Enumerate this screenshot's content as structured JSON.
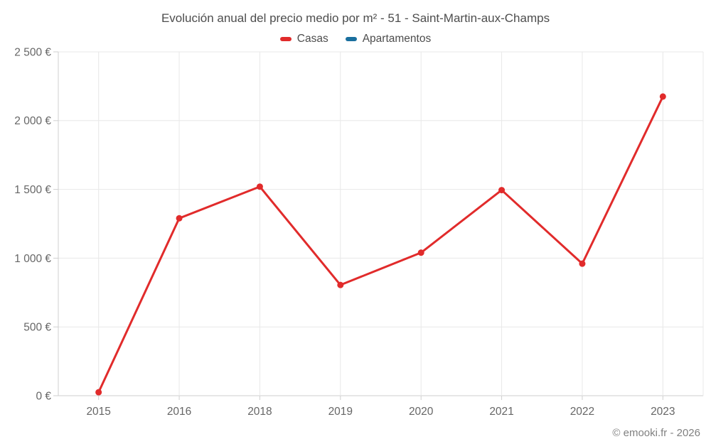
{
  "title": "Evolución anual del precio medio por m² - 51 - Saint-Martin-aux-Champs",
  "footer": "© emooki.fr - 2026",
  "colors": {
    "casas": "#e12b2b",
    "apartamentos": "#1a6f9e",
    "grid": "#e8e8e8",
    "axis": "#cfcfcf",
    "title_text": "#4d4d4d",
    "axis_text": "#666666",
    "footer_text": "#808080"
  },
  "chart_data": {
    "type": "line",
    "title": "Evolución anual del precio medio por m² - 51 - Saint-Martin-aux-Champs",
    "categories": [
      "2015",
      "2016",
      "2018",
      "2019",
      "2020",
      "2021",
      "2022",
      "2023"
    ],
    "series": [
      {
        "name": "Casas",
        "color": "#e12b2b",
        "values": [
          25,
          1290,
          1520,
          805,
          1040,
          1495,
          960,
          2175
        ]
      },
      {
        "name": "Apartamentos",
        "color": "#1a6f9e",
        "values": []
      }
    ],
    "xlabel": "",
    "ylabel": "",
    "ylim": [
      0,
      2500
    ],
    "y_ticks": [
      {
        "value": 0,
        "label": "0 €"
      },
      {
        "value": 500,
        "label": "500 €"
      },
      {
        "value": 1000,
        "label": "1 000 €"
      },
      {
        "value": 1500,
        "label": "1 500 €"
      },
      {
        "value": 2000,
        "label": "2 000 €"
      },
      {
        "value": 2500,
        "label": "2 500 €"
      }
    ],
    "grid": true,
    "legend_position": "top"
  }
}
